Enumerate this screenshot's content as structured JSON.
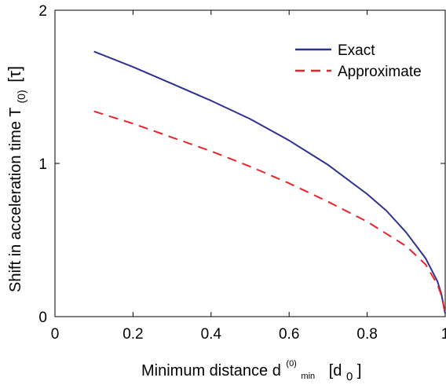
{
  "chart_data": {
    "type": "line",
    "title": "",
    "xlabel": {
      "main": "Minimum distance d",
      "superscript": "(0)",
      "subscript": "min",
      "unit_open": "[d",
      "unit_sub": "0",
      "unit_close": "]"
    },
    "ylabel": {
      "main": "Shift in acceleration time T",
      "subscript": "(0)",
      "unit": "[τ]"
    },
    "xlim": [
      0,
      1
    ],
    "ylim": [
      0,
      2
    ],
    "xticks": [
      0,
      0.2,
      0.4,
      0.6,
      0.8,
      1
    ],
    "xtick_labels": [
      "0",
      "0.2",
      "0.4",
      "0.6",
      "0.8",
      "1"
    ],
    "yticks": [
      0,
      1,
      2
    ],
    "ytick_labels": [
      "0",
      "1",
      "2"
    ],
    "grid": false,
    "legend_position": "top-right",
    "series": [
      {
        "name": "Exact",
        "color": "#2e3192",
        "style": "solid",
        "x": [
          0.1,
          0.2,
          0.3,
          0.4,
          0.5,
          0.6,
          0.7,
          0.8,
          0.85,
          0.9,
          0.95,
          0.98,
          0.99,
          1.0
        ],
        "y": [
          1.73,
          1.63,
          1.52,
          1.41,
          1.29,
          1.15,
          0.99,
          0.8,
          0.69,
          0.55,
          0.38,
          0.23,
          0.15,
          0.02
        ]
      },
      {
        "name": "Approximate",
        "color": "#e8262a",
        "style": "dashed",
        "x": [
          0.1,
          0.2,
          0.3,
          0.4,
          0.5,
          0.6,
          0.7,
          0.8,
          0.85,
          0.9,
          0.95,
          0.98,
          0.99,
          1.0
        ],
        "y": [
          1.34,
          1.26,
          1.17,
          1.08,
          0.98,
          0.87,
          0.75,
          0.62,
          0.54,
          0.46,
          0.34,
          0.21,
          0.14,
          0.02
        ]
      }
    ]
  }
}
